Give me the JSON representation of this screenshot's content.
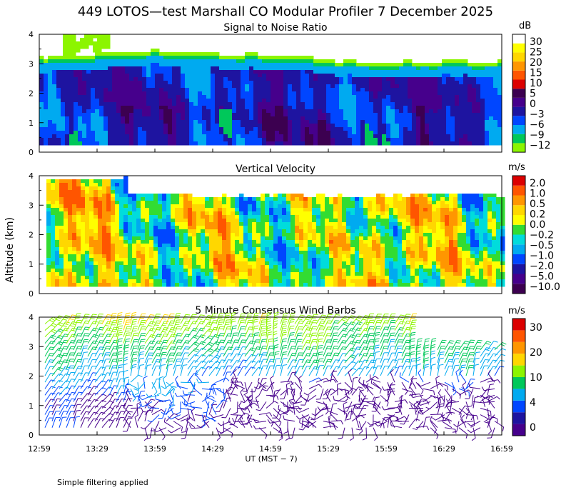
{
  "title": "449 LOTOS—test Marshall CO Modular Profiler  7 December 2025",
  "y_axis_label": "Altitude (km)",
  "x_axis_label": "UT  (MST − 7)",
  "footnote": "Simple filtering applied",
  "x_ticks": [
    "12:59",
    "13:29",
    "13:59",
    "14:29",
    "14:59",
    "15:29",
    "15:59",
    "16:29",
    "16:59"
  ],
  "y_ticks": [
    "0",
    "1",
    "2",
    "3",
    "4"
  ],
  "colors": {
    "snr": [
      "#8cf500",
      "#00c85a",
      "#00aaf0",
      "#0046ff",
      "#1e14a0",
      "#46008c",
      "#3c0050",
      "#dc0000",
      "#ff5500",
      "#ff9600",
      "#ffd700",
      "#ffff00",
      "#ffffff"
    ],
    "vv": [
      "#3c0050",
      "#46008c",
      "#1e14a0",
      "#0046ff",
      "#00aaf0",
      "#00dcdc",
      "#32dc32",
      "#ffff00",
      "#ffd700",
      "#ff9600",
      "#ff5500",
      "#dc0000"
    ],
    "wind": [
      "#46008c",
      "#1e14a0",
      "#0046ff",
      "#00aaf0",
      "#00c85a",
      "#8cf500",
      "#ffd700",
      "#ff9600",
      "#ff5500",
      "#dc0000"
    ]
  },
  "chart_data": [
    {
      "type": "heatmap",
      "title": "Signal to Noise Ratio",
      "units": "dB",
      "ylim": [
        0,
        4
      ],
      "xlim": [
        "12:59",
        "16:59"
      ],
      "colorbar_labels": [
        "30",
        "25",
        "20",
        "15",
        "10",
        "5",
        "0",
        "−3",
        "−6",
        "−9",
        "−12"
      ],
      "data_top_km": {
        "times": [
          "12:59",
          "13:29",
          "13:59",
          "14:29",
          "14:59",
          "15:29",
          "15:59",
          "16:29",
          "16:59"
        ],
        "values": [
          3.3,
          3.4,
          3.5,
          3.45,
          3.3,
          3.2,
          3.1,
          3.15,
          3.2
        ]
      },
      "data_bottom_km": 0.25
    },
    {
      "type": "heatmap",
      "title": "Vertical Velocity",
      "units": "m/s",
      "ylim": [
        0,
        4
      ],
      "xlim": [
        "12:59",
        "16:59"
      ],
      "colorbar_labels": [
        "2.0",
        "1.0",
        "0.5",
        "0.2",
        "0.0",
        "−0.2",
        "−0.5",
        "−1.0",
        "−2.0",
        "−5.0",
        "−10.0"
      ],
      "data_top_km": 3.4,
      "data_bottom_km": 0.25
    },
    {
      "type": "scatter",
      "title": "5 Minute Consensus Wind Barbs",
      "units": "m/s",
      "ylim": [
        0,
        4
      ],
      "xlim": [
        "12:59",
        "16:59"
      ],
      "colorbar_labels": [
        "30",
        "20",
        "10",
        "4",
        "0"
      ],
      "wind_speed_by_altitude": {
        "altitude_km": [
          0.2,
          1.0,
          1.5,
          2.0,
          2.5,
          3.0,
          3.5,
          4.0
        ],
        "speed_ms": [
          2,
          2,
          4,
          6,
          8,
          10,
          12,
          16
        ]
      }
    }
  ]
}
